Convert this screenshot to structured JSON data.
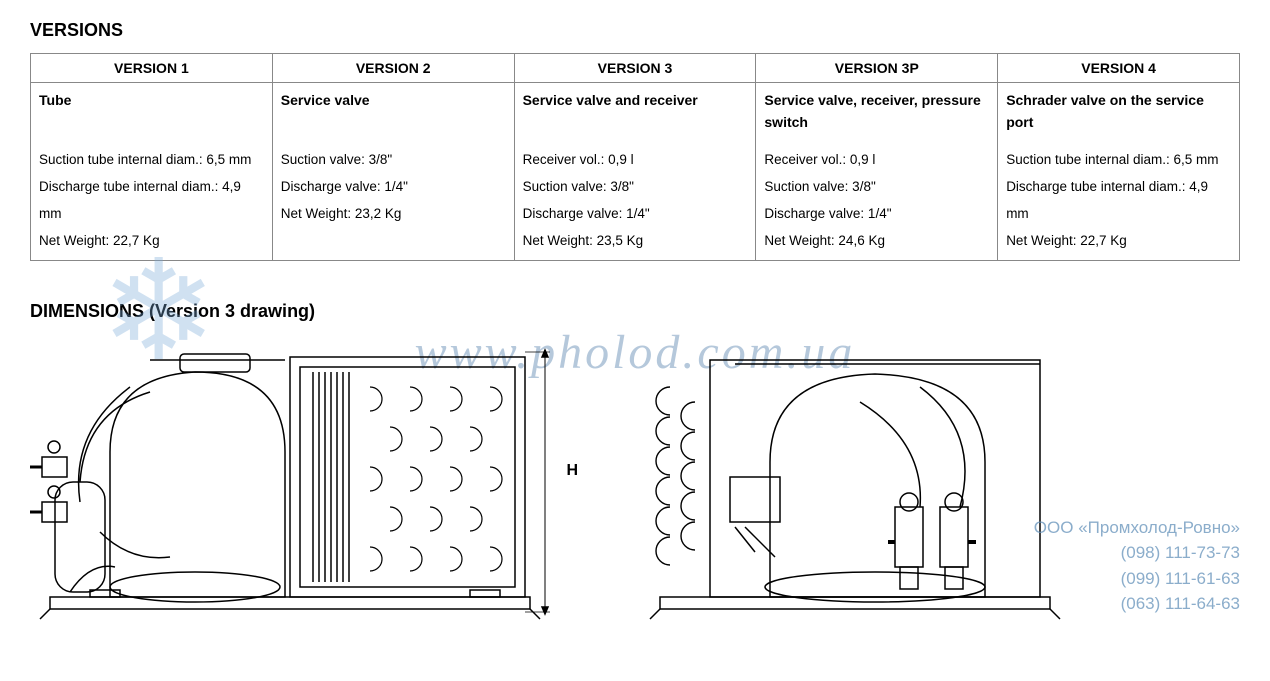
{
  "sections": {
    "versions_title": "VERSIONS",
    "dimensions_title": "DIMENSIONS (Version 3 drawing)"
  },
  "table": {
    "headers": [
      "VERSION 1",
      "VERSION 2",
      "VERSION 3",
      "VERSION 3P",
      "VERSION 4"
    ],
    "subtitles": [
      "Tube",
      "Service valve",
      "Service valve and receiver",
      "Service valve, receiver, pressure switch",
      "Schrader valve on the service port"
    ],
    "details": [
      [
        "Suction tube internal diam.: 6,5 mm",
        "Discharge tube internal diam.: 4,9 mm",
        "Net Weight: 22,7 Kg"
      ],
      [
        "Suction valve: 3/8\"",
        "Discharge valve: 1/4\"",
        "Net Weight: 23,2 Kg"
      ],
      [
        "Receiver vol.: 0,9 l",
        "Suction valve: 3/8\"",
        "Discharge valve: 1/4\"",
        "Net Weight: 23,5 Kg"
      ],
      [
        "Receiver vol.: 0,9 l",
        "Suction valve: 3/8\"",
        "Discharge valve: 1/4\"",
        "Net Weight: 24,6 Kg"
      ],
      [
        "Suction tube internal diam.: 6,5 mm",
        "Discharge tube internal diam.: 4,9 mm",
        "Net Weight: 22,7 Kg"
      ]
    ]
  },
  "drawing": {
    "h_label": "H",
    "stroke_color": "#000000",
    "stroke_width": 1.5,
    "background": "#ffffff"
  },
  "watermark": {
    "url": "www.pholod.com.ua",
    "snowflake": "❄",
    "company": "ООО «Промхолод-Ровно»",
    "phones": [
      "(098) 111-73-73",
      "(099) 111-61-63",
      "(063) 111-64-63"
    ],
    "text_color": "#6491b9"
  }
}
